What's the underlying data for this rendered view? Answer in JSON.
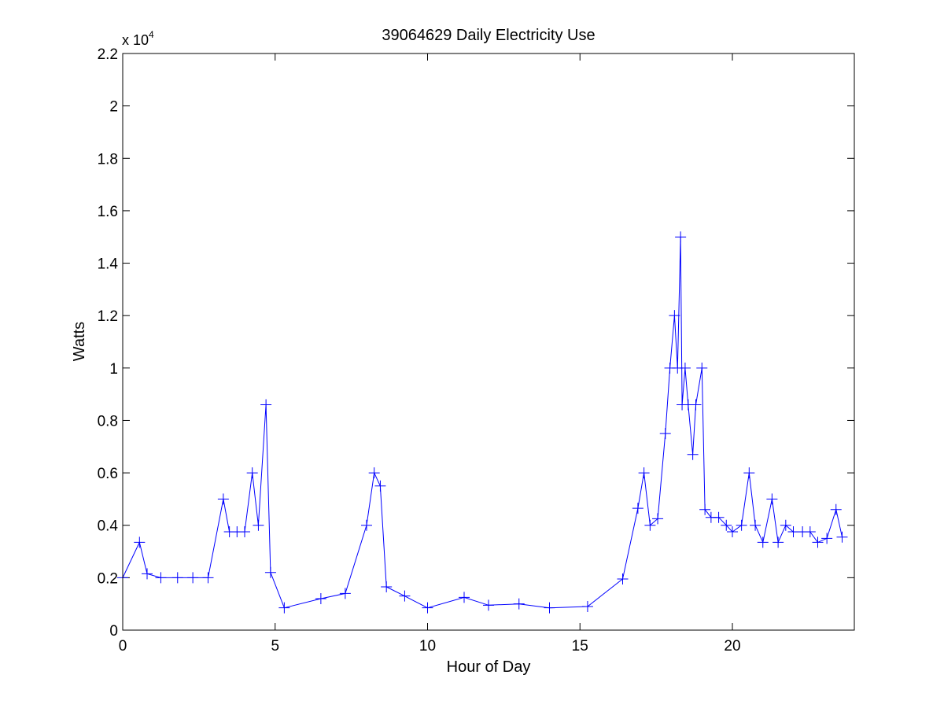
{
  "chart_data": {
    "type": "line",
    "title": "39064629 Daily Electricity Use",
    "xlabel": "Hour of Day",
    "ylabel": "Watts",
    "y_multiplier_label": "x 10",
    "y_multiplier_exponent": "4",
    "xlim": [
      0,
      24
    ],
    "ylim": [
      0,
      2.2
    ],
    "xticks": [
      0,
      5,
      10,
      15,
      20
    ],
    "yticks": [
      0,
      0.2,
      0.4,
      0.6,
      0.8,
      1,
      1.2,
      1.4,
      1.6,
      1.8,
      2,
      2.2
    ],
    "xtick_labels": [
      "0",
      "5",
      "10",
      "15",
      "20"
    ],
    "ytick_labels": [
      "0",
      "0.2",
      "0.4",
      "0.6",
      "0.8",
      "1",
      "1.2",
      "1.4",
      "1.6",
      "1.8",
      "2",
      "2.2"
    ],
    "grid": false,
    "line_color": "#0000ff",
    "marker": "plus",
    "series": [
      {
        "x": [
          0.0,
          0.55,
          0.8,
          1.25,
          1.8,
          2.3,
          2.8,
          3.3,
          3.5,
          3.75,
          4.0,
          4.25,
          4.45,
          4.7,
          4.85,
          5.3,
          6.5,
          7.3,
          8.0,
          8.25,
          8.45,
          8.65,
          9.25,
          10.0,
          11.2,
          12.0,
          13.0,
          14.0,
          15.25,
          16.4,
          16.9,
          17.1,
          17.3,
          17.55,
          17.8,
          17.95,
          18.1,
          18.2,
          18.3,
          18.35,
          18.45,
          18.55,
          18.7,
          18.8,
          19.0,
          19.1,
          19.3,
          19.55,
          19.8,
          20.0,
          20.3,
          20.55,
          20.75,
          21.0,
          21.3,
          21.5,
          21.75,
          22.0,
          22.3,
          22.55,
          22.8,
          23.1,
          23.4,
          23.6
        ],
        "y": [
          0.2,
          0.335,
          0.215,
          0.2,
          0.2,
          0.2,
          0.2,
          0.5,
          0.375,
          0.375,
          0.375,
          0.6,
          0.4,
          0.86,
          0.22,
          0.085,
          0.12,
          0.14,
          0.4,
          0.6,
          0.55,
          0.165,
          0.13,
          0.085,
          0.125,
          0.095,
          0.1,
          0.085,
          0.09,
          0.195,
          0.465,
          0.6,
          0.4,
          0.425,
          0.75,
          1.0,
          1.2,
          1.0,
          1.5,
          0.86,
          1.0,
          0.86,
          0.67,
          0.86,
          1.0,
          0.46,
          0.43,
          0.43,
          0.4,
          0.375,
          0.4,
          0.6,
          0.4,
          0.335,
          0.5,
          0.335,
          0.4,
          0.375,
          0.375,
          0.375,
          0.335,
          0.35,
          0.46,
          0.355
        ]
      }
    ]
  }
}
